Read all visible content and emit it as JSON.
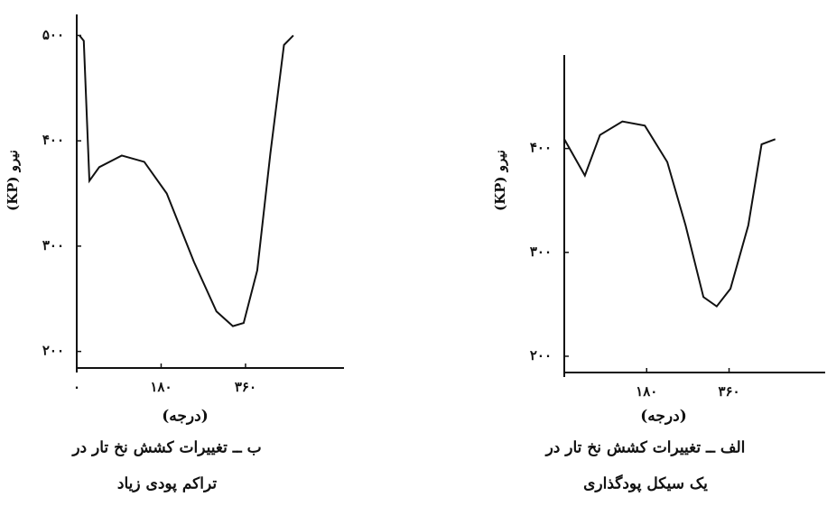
{
  "chart_data": [
    {
      "type": "line",
      "y_label": "نیرو (KP)",
      "x_label": "(درجه)",
      "caption": [
        "ب ــ تغییرات کشش نخ تار در",
        "تراکم پودی زیاد"
      ],
      "x": [
        6,
        15,
        27,
        48,
        96,
        144,
        192,
        250,
        298,
        333,
        356,
        385,
        413,
        442,
        462
      ],
      "series": [
        {
          "color": "#111111",
          "values": [
            500,
            495,
            362,
            375,
            386,
            380,
            350,
            285,
            238,
            224,
            227,
            277,
            388,
            491,
            500
          ]
        }
      ],
      "xlim": [
        0,
        570
      ],
      "ylim": [
        180,
        520
      ],
      "xticks": [
        {
          "value": 0,
          "label": "۰"
        },
        {
          "value": 180,
          "label": "۱۸۰"
        },
        {
          "value": 360,
          "label": "۳۶۰"
        }
      ],
      "yticks": [
        {
          "value": 200,
          "label": "۲۰۰"
        },
        {
          "value": 300,
          "label": "۳۰۰"
        },
        {
          "value": 400,
          "label": "۴۰۰"
        },
        {
          "value": 500,
          "label": "۵۰۰"
        }
      ]
    },
    {
      "type": "line",
      "y_label": "نیرو (KP)",
      "x_label": "(درجه)",
      "caption": [
        "الف ــ تغییرات کشش نخ تار در",
        "یک سیکل پودگذاری"
      ],
      "x": [
        0,
        45,
        78,
        127,
        176,
        225,
        265,
        304,
        333,
        363,
        402,
        431,
        461
      ],
      "series": [
        {
          "color": "#111111",
          "values": [
            409,
            374,
            413,
            426,
            422,
            387,
            326,
            257,
            248,
            265,
            326,
            404,
            409
          ]
        }
      ],
      "xlim": [
        0,
        570
      ],
      "ylim": [
        180,
        490
      ],
      "xticks": [
        {
          "value": 180,
          "label": "۱۸۰"
        },
        {
          "value": 360,
          "label": "۳۶۰"
        }
      ],
      "yticks": [
        {
          "value": 200,
          "label": "۲۰۰"
        },
        {
          "value": 300,
          "label": "۳۰۰"
        },
        {
          "value": 400,
          "label": "۴۰۰"
        }
      ]
    }
  ]
}
